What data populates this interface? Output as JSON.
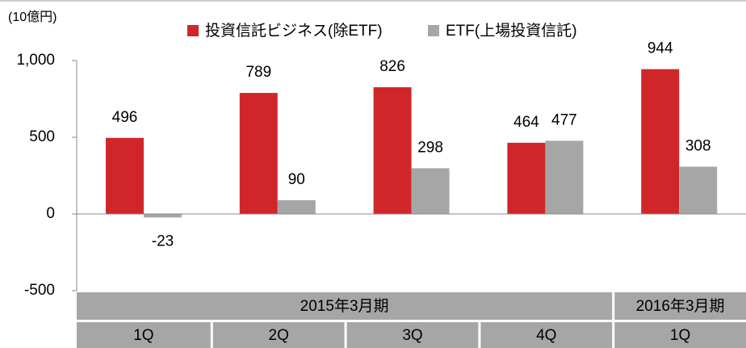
{
  "chart_data": {
    "type": "bar",
    "unit_label": "(10億円)",
    "categories": [
      "1Q",
      "2Q",
      "3Q",
      "4Q",
      "1Q"
    ],
    "category_groups": [
      {
        "label": "2015年3月期",
        "span": 4
      },
      {
        "label": "2016年3月期",
        "span": 1
      }
    ],
    "series": [
      {
        "name": "投資信託ビジネス(除ETF)",
        "color": "#d0262a",
        "values": [
          496,
          789,
          826,
          464,
          944
        ]
      },
      {
        "name": "ETF(上場投資信託)",
        "color": "#a6a6a6",
        "values": [
          -23,
          90,
          298,
          477,
          308
        ]
      }
    ],
    "ylim": [
      -500,
      1000
    ],
    "yticks": [
      -500,
      0,
      500,
      {
        "value": 1000,
        "label": "1,000"
      }
    ]
  }
}
